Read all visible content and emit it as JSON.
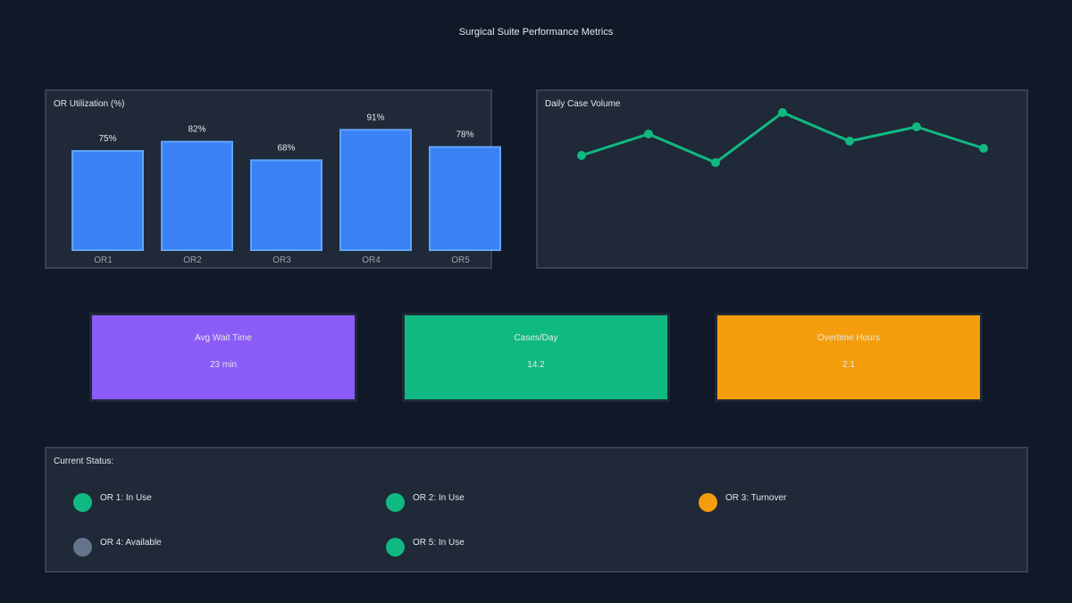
{
  "title": "Surgical Suite Performance Metrics",
  "colors": {
    "bar": "#3b82f6",
    "bar_stroke": "#60a5fa",
    "line": "#10b981",
    "purple": "#8b5cf6",
    "green": "#10b981",
    "orange": "#f59e0b",
    "gray": "#64748b"
  },
  "chart_data": [
    {
      "type": "bar",
      "title": "OR Utilization (%)",
      "categories": [
        "OR1",
        "OR2",
        "OR3",
        "OR4",
        "OR5"
      ],
      "values": [
        75,
        82,
        68,
        91,
        78
      ],
      "value_labels": [
        "75%",
        "82%",
        "68%",
        "91%",
        "78%"
      ],
      "ylim": [
        0,
        100
      ]
    },
    {
      "type": "line",
      "title": "Daily Case Volume",
      "x": [
        1,
        2,
        3,
        4,
        5,
        6,
        7
      ],
      "values": [
        12,
        15,
        11,
        18,
        14,
        16,
        13
      ]
    }
  ],
  "kpis": [
    {
      "label": "Avg Wait Time",
      "value": "23 min",
      "color": "#8b5cf6"
    },
    {
      "label": "Cases/Day",
      "value": "14.2",
      "color": "#10b981"
    },
    {
      "label": "Overtime Hours",
      "value": "2.1",
      "color": "#f59e0b"
    }
  ],
  "status": {
    "title": "Current Status:",
    "items": [
      {
        "label": "OR 1: In Use",
        "color": "#10b981"
      },
      {
        "label": "OR 2: In Use",
        "color": "#10b981"
      },
      {
        "label": "OR 3: Turnover",
        "color": "#f59e0b"
      },
      {
        "label": "OR 4: Available",
        "color": "#64748b"
      },
      {
        "label": "OR 5: In Use",
        "color": "#10b981"
      }
    ]
  }
}
